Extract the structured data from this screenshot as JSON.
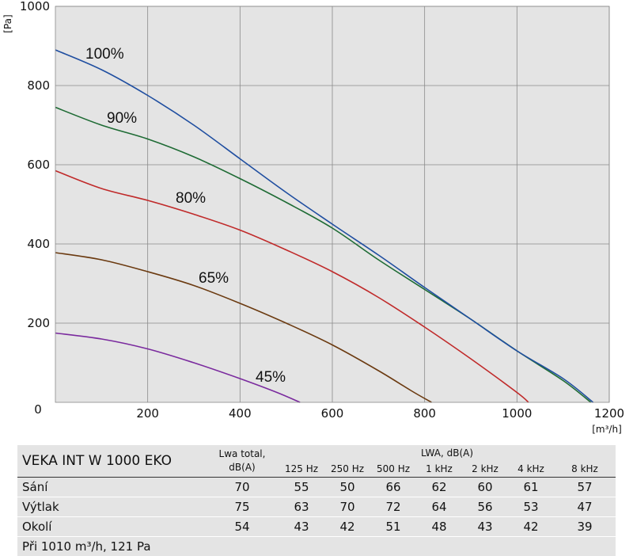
{
  "chart_data": {
    "type": "line",
    "xlabel": "[m³/h]",
    "ylabel": "[Pa]",
    "xlim": [
      0,
      1200
    ],
    "ylim": [
      0,
      1000
    ],
    "x_ticks": [
      "200",
      "400",
      "600",
      "800",
      "1000",
      "1200"
    ],
    "y_ticks": [
      "200",
      "400",
      "600",
      "800",
      "1000"
    ],
    "origin_label": "0",
    "grid": true,
    "series": [
      {
        "name": "100%",
        "color": "#1f4ea0",
        "points": [
          [
            0,
            890
          ],
          [
            100,
            840
          ],
          [
            200,
            775
          ],
          [
            300,
            700
          ],
          [
            400,
            615
          ],
          [
            500,
            530
          ],
          [
            600,
            450
          ],
          [
            700,
            372
          ],
          [
            800,
            290
          ],
          [
            900,
            210
          ],
          [
            1000,
            130
          ],
          [
            1100,
            60
          ],
          [
            1165,
            0
          ]
        ]
      },
      {
        "name": "90%",
        "color": "#1e6b34",
        "points": [
          [
            0,
            745
          ],
          [
            100,
            700
          ],
          [
            200,
            665
          ],
          [
            300,
            620
          ],
          [
            400,
            565
          ],
          [
            500,
            505
          ],
          [
            600,
            440
          ],
          [
            700,
            360
          ],
          [
            800,
            285
          ],
          [
            900,
            210
          ],
          [
            1000,
            130
          ],
          [
            1100,
            55
          ],
          [
            1160,
            0
          ]
        ]
      },
      {
        "name": "80%",
        "color": "#c02a2a",
        "points": [
          [
            0,
            585
          ],
          [
            100,
            540
          ],
          [
            200,
            510
          ],
          [
            300,
            475
          ],
          [
            400,
            435
          ],
          [
            500,
            385
          ],
          [
            600,
            330
          ],
          [
            700,
            265
          ],
          [
            800,
            190
          ],
          [
            900,
            110
          ],
          [
            1000,
            25
          ],
          [
            1025,
            0
          ]
        ]
      },
      {
        "name": "65%",
        "color": "#6b3a10",
        "points": [
          [
            0,
            378
          ],
          [
            100,
            360
          ],
          [
            200,
            330
          ],
          [
            300,
            295
          ],
          [
            400,
            250
          ],
          [
            500,
            200
          ],
          [
            600,
            145
          ],
          [
            700,
            80
          ],
          [
            770,
            30
          ],
          [
            815,
            0
          ]
        ]
      },
      {
        "name": "45%",
        "color": "#7a2a9e",
        "points": [
          [
            0,
            175
          ],
          [
            100,
            160
          ],
          [
            200,
            135
          ],
          [
            300,
            100
          ],
          [
            400,
            60
          ],
          [
            480,
            25
          ],
          [
            530,
            0
          ]
        ]
      }
    ]
  },
  "table": {
    "model": "VEKA INT W 1000 EKO",
    "lwa_total_line1": "Lwa total,",
    "lwa_total_line2": "dB(A)",
    "lwa_group": "LWA, dB(A)",
    "bands": [
      "125  Hz",
      "250  Hz",
      "500  Hz",
      "1 kHz",
      "2 kHz",
      "4 kHz",
      "8 kHz"
    ],
    "rows": [
      {
        "label": "Sání",
        "total": "70",
        "values": [
          "55",
          "50",
          "66",
          "62",
          "60",
          "61",
          "57"
        ]
      },
      {
        "label": "Výtlak",
        "total": "75",
        "values": [
          "63",
          "70",
          "72",
          "64",
          "56",
          "53",
          "47"
        ]
      },
      {
        "label": "Okolí",
        "total": "54",
        "values": [
          "43",
          "42",
          "51",
          "48",
          "43",
          "42",
          "39"
        ]
      }
    ],
    "footnote": "Při 1010 m³/h, 121 Pa"
  }
}
